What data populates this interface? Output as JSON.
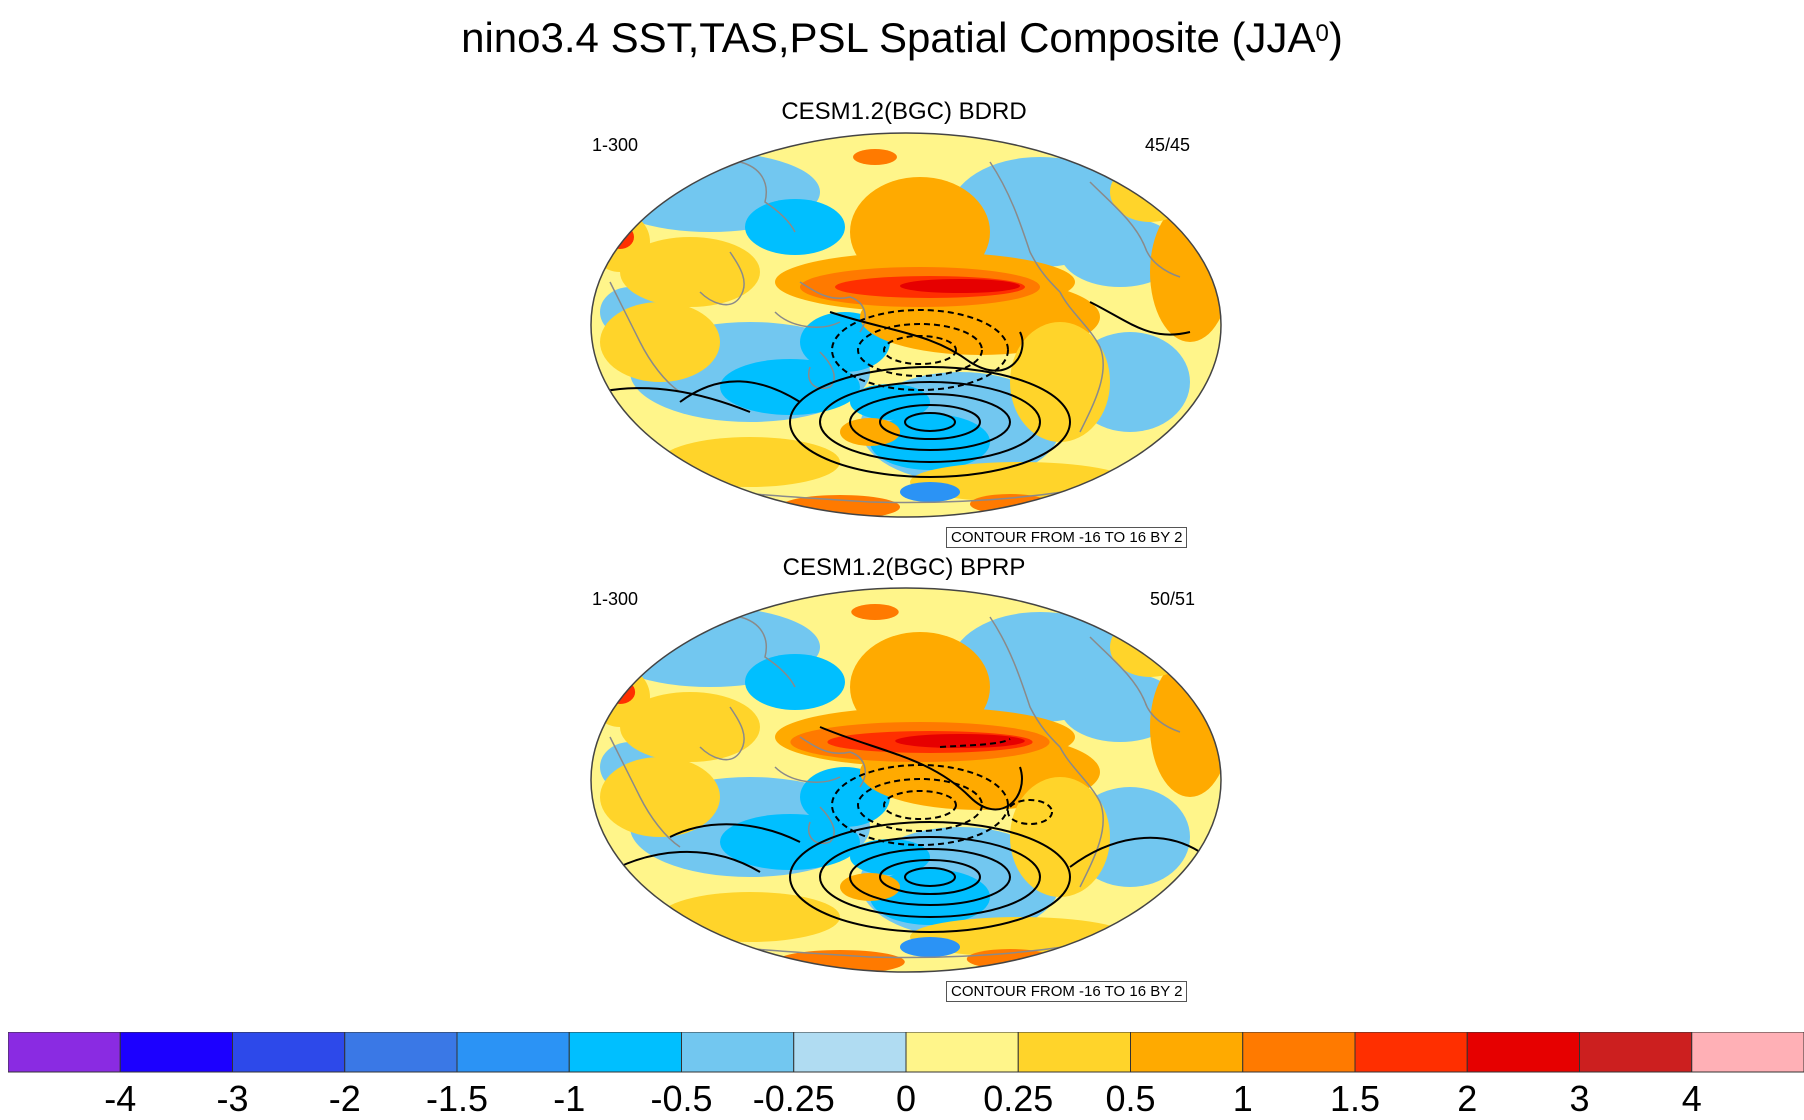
{
  "title": {
    "main": "nino3.4 SST,TAS,PSL Spatial Composite (JJA",
    "superscript": "0",
    "suffix": ")"
  },
  "panels": [
    {
      "title": "CESM1.2(BGC) BDRD",
      "left_label": "1-300",
      "right_label": "45/45",
      "contour_note": "CONTOUR FROM -16 TO 16 BY 2"
    },
    {
      "title": "CESM1.2(BGC) BPRP",
      "left_label": "1-300",
      "right_label": "50/51",
      "contour_note": "CONTOUR FROM -16 TO 16 BY 2"
    }
  ],
  "chart_data": {
    "type": "heatmap",
    "title": "nino3.4 SST,TAS,PSL Spatial Composite (JJA0)",
    "projection": "Robinson, Pacific-centered",
    "fill_variable": "SST/TAS composite anomaly",
    "contour_variable": "PSL composite anomaly",
    "contour_levels": {
      "min": -16,
      "max": 16,
      "step": 2
    },
    "panels": [
      "CESM1.2(BGC) BDRD",
      "CESM1.2(BGC) BPRP"
    ],
    "colorbar": {
      "ticks": [
        "-4",
        "-3",
        "-2",
        "-1.5",
        "-1",
        "-0.5",
        "-0.25",
        "0",
        "0.25",
        "0.5",
        "1",
        "1.5",
        "2",
        "3",
        "4"
      ],
      "colors": [
        "#8a2be2",
        "#1c00ff",
        "#2d49ea",
        "#3a78e6",
        "#2b93f5",
        "#00bfff",
        "#72c7f0",
        "#b0dcf2",
        "#fff58a",
        "#ffd42a",
        "#ffaa00",
        "#ff7a00",
        "#ff2f00",
        "#e60000",
        "#cc1f1f",
        "#ffb0b6"
      ]
    },
    "features": {
      "warm_tongue": "equatorial eastern Pacific, values 1.5 to 3",
      "negative_psl_center": "southeast Pacific, dashed contours",
      "positive_psl_ring": "southern ocean / Pacific sector, solid contours"
    }
  }
}
